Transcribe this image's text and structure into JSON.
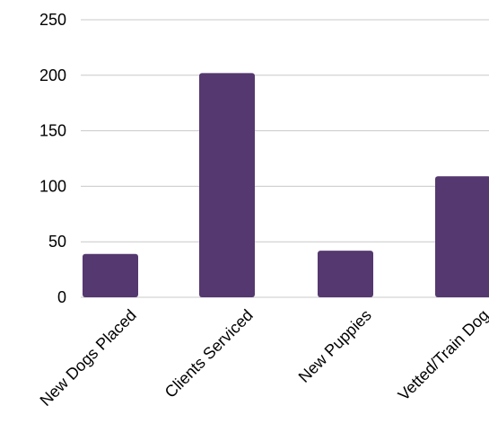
{
  "chart_data": {
    "type": "bar",
    "title": "",
    "xlabel": "",
    "ylabel": "",
    "categories": [
      "New Dogs Placed",
      "Clients Serviced",
      "New Puppies",
      "Vetted/Train Dog"
    ],
    "values": [
      39,
      202,
      42,
      109
    ],
    "ylim": [
      0,
      250
    ],
    "yticks": [
      0,
      50,
      100,
      150,
      200,
      250
    ],
    "grid": true,
    "legend": "none",
    "colors": {
      "bar": "#553870",
      "grid": "#c8c8c8"
    }
  }
}
